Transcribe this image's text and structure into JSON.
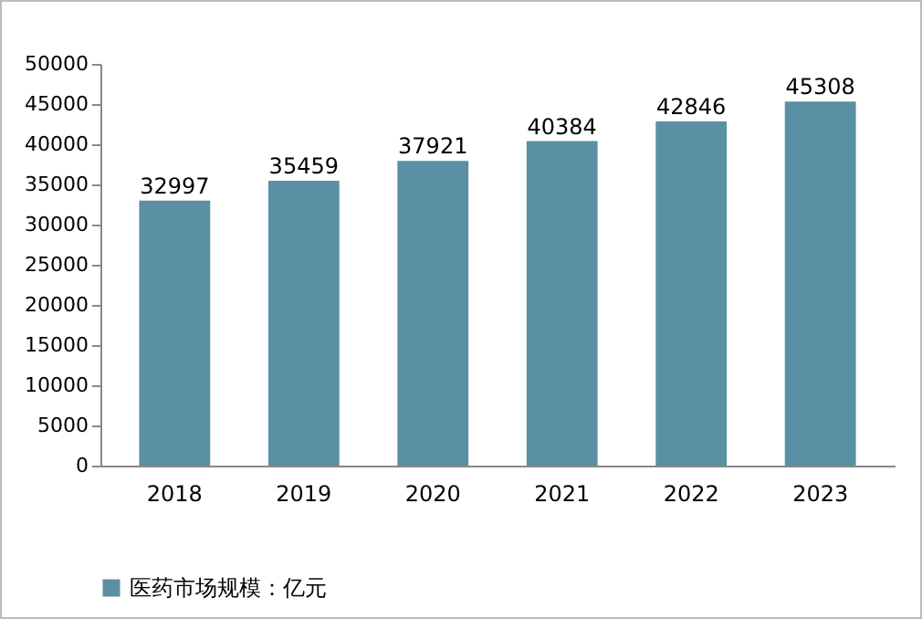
{
  "chart_data": {
    "type": "bar",
    "categories": [
      "2018",
      "2019",
      "2020",
      "2021",
      "2022",
      "2023"
    ],
    "series": [
      {
        "name": "医药市场规模：亿元",
        "color": "#5b8fa3",
        "values": [
          32997,
          35459,
          37921,
          40384,
          42846,
          45308
        ]
      }
    ],
    "ylim": [
      0,
      50000
    ],
    "yticks": [
      0,
      5000,
      10000,
      15000,
      20000,
      25000,
      30000,
      35000,
      40000,
      45000,
      50000
    ],
    "grid": false,
    "legend": "bottom",
    "data_labels": true
  }
}
